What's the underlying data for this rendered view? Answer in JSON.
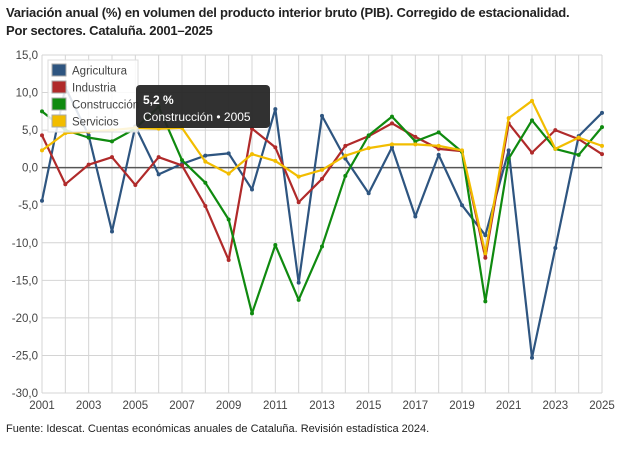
{
  "title_line1": "Variación anual (%) en volumen del producto interior bruto (PIB). Corregido de estacionalidad.",
  "title_line2": "Por sectores. Cataluña. 2001–2025",
  "source": "Fuente: Idescat. Cuentas económicas anuales de Cataluña. Revisión estadística 2024.",
  "tooltip": {
    "value": "5,2 %",
    "label": "Construcción • 2005"
  },
  "chart_data": {
    "type": "line",
    "title": "Variación anual (%) en volumen del producto interior bruto (PIB). Corregido de estacionalidad. Por sectores. Cataluña. 2001–2025",
    "x": [
      2001,
      2002,
      2003,
      2004,
      2005,
      2006,
      2007,
      2008,
      2009,
      2010,
      2011,
      2012,
      2013,
      2014,
      2015,
      2016,
      2017,
      2018,
      2019,
      2020,
      2021,
      2022,
      2023,
      2024,
      2025
    ],
    "xticks": [
      "2001",
      "2003",
      "2005",
      "2007",
      "2009",
      "2011",
      "2013",
      "2015",
      "2017",
      "2019",
      "2021",
      "2023",
      "2025"
    ],
    "yticks": [
      "15,0",
      "10,0",
      "5,0",
      "0,0",
      "-5,0",
      "-10,0",
      "-15,0",
      "-20,0",
      "-25,0",
      "-30,0"
    ],
    "ylim": [
      -30,
      15
    ],
    "grid": true,
    "legend_position": "top-left",
    "series": [
      {
        "name": "Agricultura",
        "color": "#2e5580",
        "values": [
          -4.4,
          10.7,
          4.3,
          -8.5,
          5.5,
          -0.9,
          0.5,
          1.6,
          1.9,
          -2.9,
          7.8,
          -15.3,
          6.9,
          1.2,
          -3.4,
          2.7,
          -6.5,
          1.7,
          -5.0,
          -9.0,
          2.3,
          -25.3,
          -10.7,
          4.2,
          7.3
        ]
      },
      {
        "name": "Industria",
        "color": "#b02a2a",
        "values": [
          4.3,
          -2.2,
          0.4,
          1.4,
          -2.3,
          1.4,
          0.3,
          -5.1,
          -12.3,
          5.2,
          2.7,
          -4.6,
          -1.5,
          2.9,
          4.2,
          5.9,
          4.1,
          2.5,
          2.2,
          -12.0,
          5.9,
          2.0,
          5.0,
          3.8,
          1.8
        ]
      },
      {
        "name": "Construcción",
        "color": "#0f8a0f",
        "values": [
          7.5,
          5.0,
          4.0,
          3.5,
          5.2,
          8.1,
          1.0,
          -2.0,
          -6.9,
          -19.4,
          -10.3,
          -17.6,
          -10.5,
          -1.1,
          4.3,
          6.8,
          3.5,
          4.7,
          2.1,
          -17.8,
          1.2,
          6.3,
          2.5,
          1.7,
          5.4
        ]
      },
      {
        "name": "Servicios",
        "color": "#f2bd00",
        "values": [
          2.3,
          4.6,
          4.8,
          5.0,
          5.3,
          5.2,
          5.3,
          0.8,
          -0.8,
          1.8,
          0.9,
          -1.2,
          -0.3,
          1.6,
          2.6,
          3.1,
          3.1,
          2.9,
          2.3,
          -11.4,
          6.6,
          8.9,
          2.5,
          4.0,
          2.9
        ]
      }
    ]
  }
}
